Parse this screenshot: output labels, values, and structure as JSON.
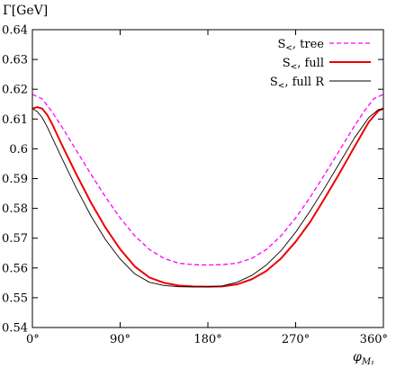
{
  "chart_data": {
    "type": "line",
    "ylabel": "Γ[GeV]",
    "xlabel": "φ",
    "xlabel_subscript": "M₁",
    "xlim": [
      0,
      360
    ],
    "ylim": [
      0.54,
      0.64
    ],
    "x_ticks": [
      0,
      90,
      180,
      270,
      360
    ],
    "x_tick_labels": [
      "0°",
      "90°",
      "180°",
      "270°",
      "360°"
    ],
    "y_ticks": [
      0.54,
      0.55,
      0.56,
      0.57,
      0.58,
      0.59,
      0.6,
      0.61,
      0.62,
      0.63,
      0.64
    ],
    "y_tick_labels": [
      "0.54",
      "0.55",
      "0.56",
      "0.57",
      "0.58",
      "0.59",
      "0.6",
      "0.61",
      "0.62",
      "0.63",
      "0.64"
    ],
    "legend_position": "top-right",
    "series": [
      {
        "name": "S<, tree",
        "legend_base": "S",
        "legend_sub": "<",
        "legend_rest": ", tree",
        "color": "#ff00ff",
        "dash": true,
        "width": 1.3,
        "x": [
          0,
          10,
          20,
          30,
          45,
          60,
          75,
          90,
          105,
          120,
          135,
          150,
          165,
          180,
          195,
          210,
          225,
          240,
          255,
          270,
          285,
          300,
          315,
          330,
          340,
          350,
          360
        ],
        "y": [
          0.6183,
          0.6168,
          0.6125,
          0.6075,
          0.5995,
          0.5915,
          0.5838,
          0.5768,
          0.5708,
          0.5662,
          0.5632,
          0.5616,
          0.5611,
          0.561,
          0.5611,
          0.5616,
          0.5632,
          0.5662,
          0.5708,
          0.5768,
          0.5838,
          0.5915,
          0.5995,
          0.6075,
          0.6125,
          0.6168,
          0.6183
        ]
      },
      {
        "name": "S<, full",
        "legend_base": "S",
        "legend_sub": "<",
        "legend_rest": ", full",
        "color": "#ee0000",
        "dash": false,
        "width": 2,
        "x": [
          0,
          5,
          10,
          15,
          20,
          30,
          45,
          60,
          75,
          90,
          105,
          120,
          135,
          150,
          165,
          180,
          195,
          210,
          225,
          240,
          255,
          270,
          285,
          300,
          315,
          330,
          345,
          355,
          360
        ],
        "y": [
          0.6135,
          0.614,
          0.6135,
          0.6115,
          0.6085,
          0.6015,
          0.5915,
          0.582,
          0.5735,
          0.5663,
          0.5605,
          0.5568,
          0.555,
          0.5541,
          0.5538,
          0.5537,
          0.5538,
          0.5545,
          0.5562,
          0.559,
          0.5632,
          0.5688,
          0.5755,
          0.5835,
          0.5918,
          0.6005,
          0.609,
          0.6128,
          0.6135
        ]
      },
      {
        "name": "S<, full R",
        "legend_base": "S",
        "legend_sub": "<",
        "legend_rest": ", full R",
        "color": "#000000",
        "dash": false,
        "width": 0.9,
        "x": [
          0,
          5,
          10,
          15,
          20,
          30,
          45,
          60,
          75,
          90,
          105,
          120,
          135,
          150,
          165,
          180,
          195,
          210,
          225,
          240,
          255,
          270,
          285,
          300,
          315,
          330,
          345,
          355,
          360
        ],
        "y": [
          0.6135,
          0.6125,
          0.6105,
          0.6075,
          0.604,
          0.597,
          0.5868,
          0.5775,
          0.5695,
          0.563,
          0.558,
          0.5552,
          0.5541,
          0.5537,
          0.5536,
          0.5537,
          0.554,
          0.5552,
          0.5575,
          0.561,
          0.5658,
          0.572,
          0.5792,
          0.587,
          0.5952,
          0.6035,
          0.6105,
          0.6132,
          0.6135
        ]
      }
    ]
  }
}
